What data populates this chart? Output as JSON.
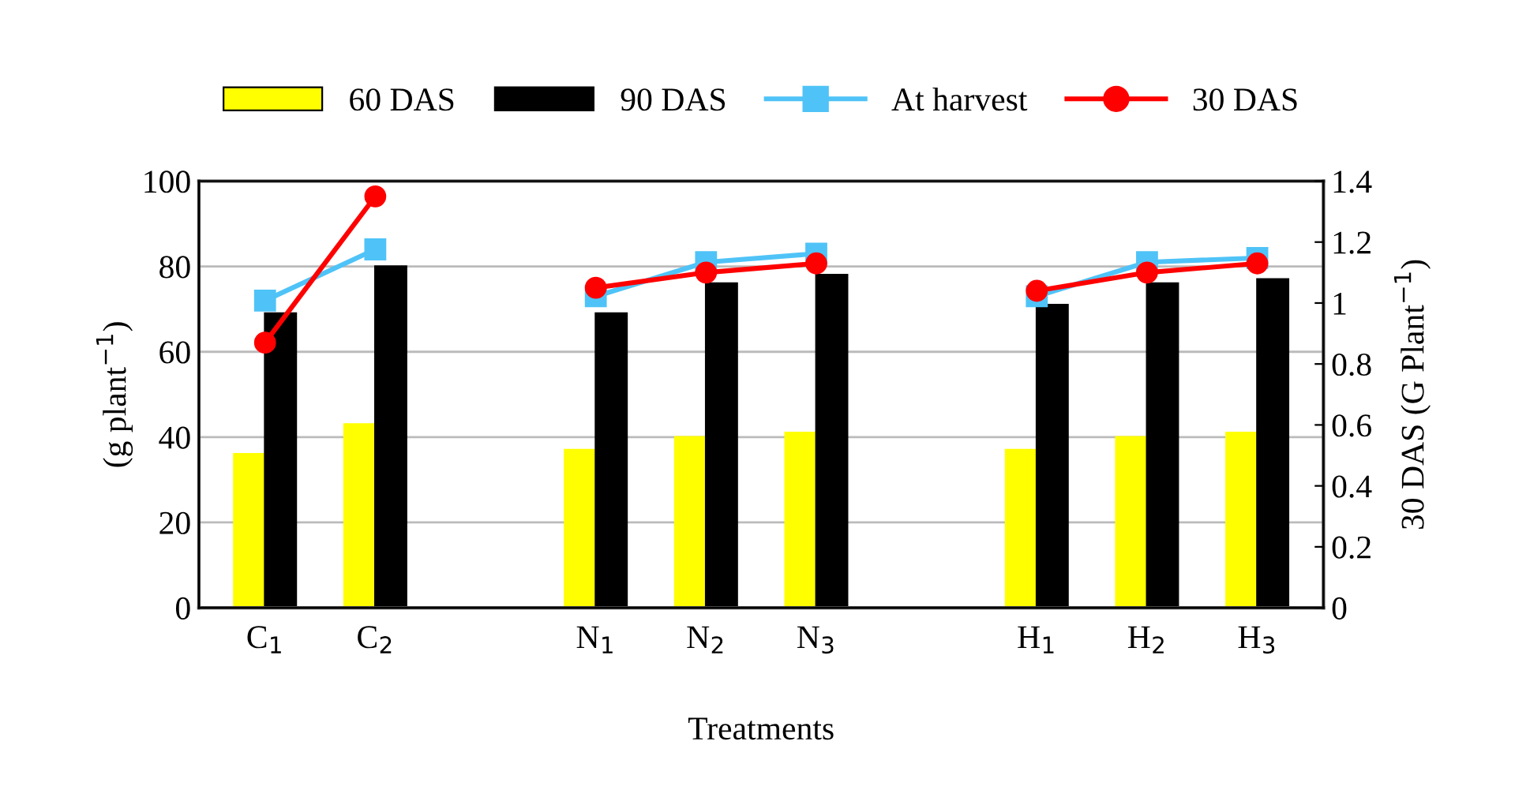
{
  "chart_data": {
    "type": "bar",
    "xlabel": "Treatments",
    "ylabel": "(g plant$^{−1}$)",
    "y2label": "30 DAS (G Plant$^{−1}$)",
    "categories": [
      "C$_{1}$",
      "C$_{2}$",
      null,
      "N$_{1}$",
      "N$_{2}$",
      "N$_{3}$",
      null,
      "H$_{1}$",
      "H$_{2}$",
      "H$_{3}$"
    ],
    "series": [
      {
        "name": "60 DAS",
        "color": "#ffff00",
        "values": [
          36,
          43,
          null,
          37,
          40,
          41,
          null,
          37,
          40,
          41
        ]
      },
      {
        "name": "90 DAS",
        "color": "#000000",
        "values": [
          69,
          80,
          null,
          69,
          76,
          78,
          null,
          71,
          76,
          77
        ]
      },
      {
        "name": "At harvest",
        "type": "line",
        "color": "#4fc3f7",
        "marker": "square",
        "values": [
          72,
          84,
          null,
          73,
          81,
          83,
          null,
          73,
          81,
          82
        ]
      },
      {
        "name": "30 DAS",
        "type": "line",
        "color": "#ff0000",
        "marker": "circle",
        "axis": "y2",
        "values": [
          0.87,
          1.35,
          null,
          1.05,
          1.1,
          1.13,
          null,
          1.04,
          1.1,
          1.13
        ]
      }
    ],
    "ylim": [
      0,
      100
    ],
    "yticks": [
      0,
      20,
      40,
      60,
      80,
      100
    ],
    "y2lim": [
      0,
      1.4
    ],
    "y2ticks": [
      0,
      0.2,
      0.4,
      0.6,
      0.8,
      1,
      1.2,
      1.4
    ],
    "grid": "y",
    "legend": "top"
  }
}
